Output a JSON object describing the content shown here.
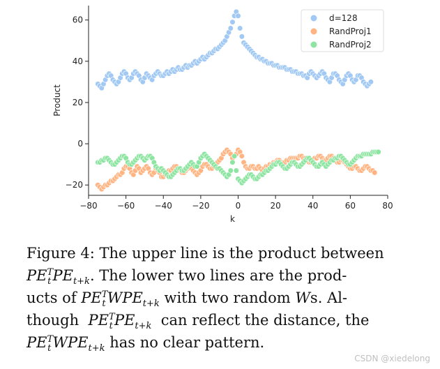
{
  "chart_data": {
    "type": "scatter",
    "xlabel": "k",
    "ylabel": "Product",
    "xlim": [
      -80,
      80
    ],
    "ylim": [
      -25,
      67
    ],
    "xticks": [
      -80,
      -60,
      -40,
      -20,
      0,
      20,
      40,
      60,
      80
    ],
    "yticks": [
      -20,
      0,
      20,
      40,
      60
    ],
    "xtick_labels": [
      "−80",
      "−60",
      "−40",
      "−20",
      "0",
      "20",
      "40",
      "60",
      "80"
    ],
    "ytick_labels": [
      "−20",
      "0",
      "20",
      "40",
      "60"
    ],
    "grid": false,
    "legend_position": "top-right",
    "x": [
      -75,
      -74,
      -73,
      -72,
      -71,
      -70,
      -69,
      -68,
      -67,
      -66,
      -65,
      -64,
      -63,
      -62,
      -61,
      -60,
      -59,
      -58,
      -57,
      -56,
      -55,
      -54,
      -53,
      -52,
      -51,
      -50,
      -49,
      -48,
      -47,
      -46,
      -45,
      -44,
      -43,
      -42,
      -41,
      -40,
      -39,
      -38,
      -37,
      -36,
      -35,
      -34,
      -33,
      -32,
      -31,
      -30,
      -29,
      -28,
      -27,
      -26,
      -25,
      -24,
      -23,
      -22,
      -21,
      -20,
      -19,
      -18,
      -17,
      -16,
      -15,
      -14,
      -13,
      -12,
      -11,
      -10,
      -9,
      -8,
      -7,
      -6,
      -5,
      -4,
      -3,
      -2,
      -1,
      0,
      1,
      2,
      3,
      4,
      5,
      6,
      7,
      8,
      9,
      10,
      11,
      12,
      13,
      14,
      15,
      16,
      17,
      18,
      19,
      20,
      21,
      22,
      23,
      24,
      25,
      26,
      27,
      28,
      29,
      30,
      31,
      32,
      33,
      34,
      35,
      36,
      37,
      38,
      39,
      40,
      41,
      42,
      43,
      44,
      45,
      46,
      47,
      48,
      49,
      50,
      51,
      52,
      53,
      54,
      55,
      56,
      57,
      58,
      59,
      60,
      61,
      62,
      63,
      64,
      65,
      66,
      67,
      68,
      69,
      70,
      71,
      72,
      73,
      74,
      75
    ],
    "series": [
      {
        "name": "d=128",
        "color": "#a1c9f4",
        "values": [
          29,
          28,
          27,
          29,
          31,
          33,
          34,
          33,
          31,
          30,
          29,
          30,
          32,
          34,
          35,
          34,
          32,
          31,
          32,
          34,
          35,
          34,
          33,
          31,
          30,
          32,
          34,
          33,
          32,
          31,
          33,
          34,
          35,
          34,
          33,
          33,
          34,
          35,
          34,
          35,
          36,
          35,
          36,
          37,
          36,
          36,
          37,
          38,
          37,
          38,
          38,
          39,
          40,
          39,
          40,
          41,
          42,
          41,
          42,
          43,
          44,
          44,
          45,
          46,
          46,
          47,
          48,
          49,
          50,
          52,
          54,
          56,
          59,
          62,
          64,
          62,
          56,
          52,
          49,
          48,
          47,
          46,
          45,
          44,
          43,
          42,
          42,
          41,
          41,
          40,
          40,
          39,
          39,
          39,
          38,
          38,
          38,
          37,
          37,
          37,
          37,
          36,
          36,
          36,
          35,
          35,
          35,
          34,
          34,
          34,
          33,
          33,
          32,
          34,
          35,
          34,
          33,
          32,
          33,
          34,
          35,
          34,
          32,
          31,
          30,
          32,
          34,
          34,
          33,
          31,
          30,
          29,
          31,
          33,
          34,
          33,
          31,
          30,
          31,
          33,
          33,
          32,
          30,
          29,
          28,
          29,
          30
        ]
      },
      {
        "name": "RandProj1",
        "color": "#ffb482",
        "values": [
          -20,
          -21,
          -22,
          -21,
          -20,
          -20,
          -19,
          -18,
          -18,
          -17,
          -16,
          -15,
          -15,
          -14,
          -12,
          -11,
          -11,
          -12,
          -14,
          -15,
          -13,
          -11,
          -12,
          -14,
          -13,
          -12,
          -11,
          -12,
          -14,
          -15,
          -14,
          -12,
          -13,
          -14,
          -16,
          -16,
          -15,
          -14,
          -13,
          -13,
          -12,
          -11,
          -11,
          -12,
          -13,
          -14,
          -14,
          -13,
          -12,
          -11,
          -12,
          -13,
          -14,
          -15,
          -14,
          -13,
          -11,
          -10,
          -10,
          -11,
          -12,
          -12,
          -11,
          -10,
          -9,
          -8,
          -7,
          -5,
          -4,
          -3,
          -4,
          -5,
          -7,
          -6,
          -5,
          -3,
          -4,
          -6,
          -9,
          -11,
          -12,
          -12,
          -11,
          -11,
          -12,
          -12,
          -11,
          -12,
          -13,
          -12,
          -11,
          -11,
          -10,
          -10,
          -9,
          -9,
          -8,
          -8,
          -9,
          -10,
          -9,
          -8,
          -8,
          -7,
          -7,
          -7,
          -7,
          -7,
          -6,
          -6,
          -7,
          -7,
          -8,
          -9,
          -9,
          -8,
          -7,
          -7,
          -6,
          -6,
          -7,
          -8,
          -8,
          -7,
          -6,
          -6,
          -7,
          -8,
          -9,
          -9,
          -8,
          -8,
          -9,
          -10,
          -11,
          -12,
          -12,
          -11,
          -11,
          -12,
          -13,
          -13,
          -12,
          -11,
          -11,
          -12,
          -13,
          -13,
          -14
        ]
      },
      {
        "name": "RandProj2",
        "color": "#8de5a1",
        "values": [
          -9,
          -9,
          -8,
          -8,
          -7,
          -7,
          -8,
          -9,
          -10,
          -10,
          -9,
          -8,
          -7,
          -6,
          -6,
          -7,
          -9,
          -10,
          -10,
          -9,
          -8,
          -7,
          -6,
          -6,
          -7,
          -8,
          -7,
          -6,
          -6,
          -7,
          -9,
          -11,
          -12,
          -13,
          -12,
          -13,
          -14,
          -15,
          -16,
          -16,
          -15,
          -14,
          -13,
          -12,
          -12,
          -13,
          -13,
          -12,
          -11,
          -10,
          -9,
          -10,
          -11,
          -11,
          -9,
          -7,
          -6,
          -5,
          -6,
          -7,
          -8,
          -9,
          -10,
          -11,
          -12,
          -12,
          -13,
          -14,
          -15,
          -16,
          -15,
          -13,
          -9,
          -6,
          -13,
          -17,
          -18,
          -19,
          -18,
          -17,
          -16,
          -15,
          -15,
          -16,
          -17,
          -17,
          -16,
          -15,
          -15,
          -14,
          -13,
          -13,
          -12,
          -11,
          -10,
          -10,
          -9,
          -9,
          -10,
          -11,
          -12,
          -12,
          -11,
          -10,
          -9,
          -9,
          -10,
          -11,
          -11,
          -10,
          -9,
          -8,
          -7,
          -7,
          -8,
          -9,
          -10,
          -11,
          -11,
          -10,
          -9,
          -10,
          -11,
          -10,
          -9,
          -8,
          -8,
          -7,
          -7,
          -6,
          -6,
          -7,
          -8,
          -9,
          -10,
          -10,
          -9,
          -8,
          -7,
          -6,
          -6,
          -6,
          -5,
          -5,
          -5,
          -5,
          -5,
          -4,
          -4,
          -4,
          -4
        ]
      }
    ]
  },
  "caption": {
    "line1": "Figure 4:  The upper line is the product between",
    "line2_math": "PE",
    "line2_sub_t": "t",
    "line2_sup_T": "T",
    "line2_math2": "PE",
    "line2_sub": "t+k",
    "line2_text": ".   The lower two lines are the prod-",
    "line3_text1": "ucts of",
    "line3_math": "PE",
    "line3_sub_t": "t",
    "line3_sup_T": "T",
    "line3_math2": "WPE",
    "line3_sub": "t+k",
    "line3_text2": "with two random",
    "line3_math3": "W",
    "line3_text3": "s.  Al-",
    "line4_text1": "though",
    "line4_math": "PE",
    "line4_sub_t": "t",
    "line4_sup_T": "T",
    "line4_math2": "PE",
    "line4_sub": "t+k",
    "line4_text2": "can reflect the distance, the",
    "line5_math": "PE",
    "line5_sub_t": "t",
    "line5_sup_T": "T",
    "line5_math2": "WPE",
    "line5_sub": "t+k",
    "line5_text": "has no clear pattern."
  },
  "watermark": "CSDN @xiedelong"
}
